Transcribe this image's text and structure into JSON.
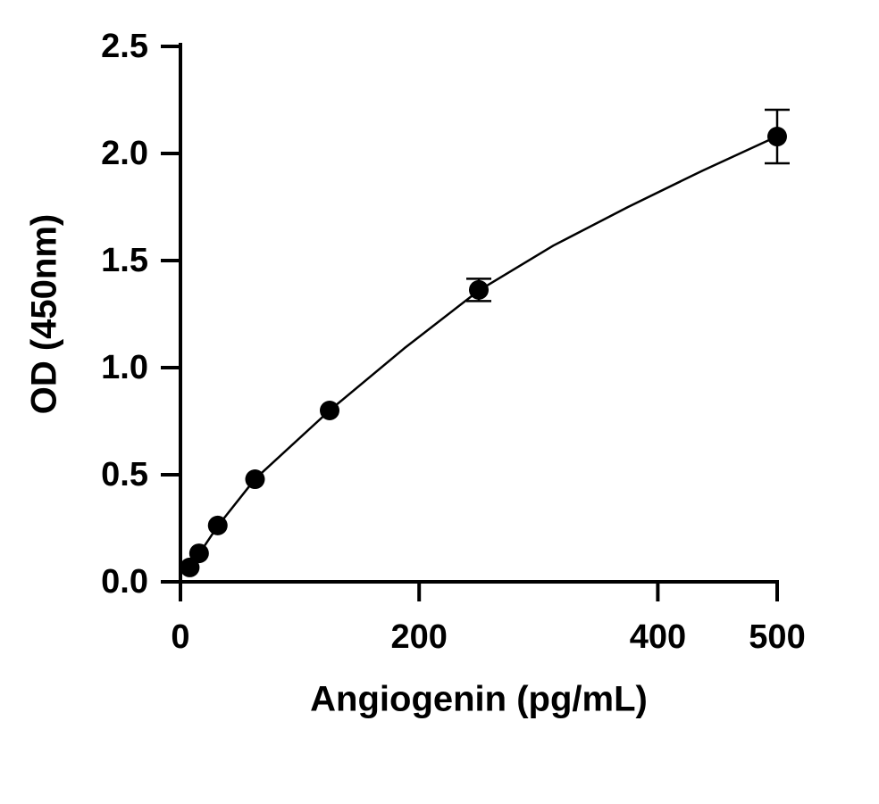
{
  "chart_data": {
    "type": "scatter",
    "x_label": "Angiogenin (pg/mL)",
    "y_label": "OD (450nm)",
    "x": [
      7.8,
      15.6,
      31.25,
      62.5,
      125,
      250,
      500
    ],
    "values": [
      0.067,
      0.133,
      0.263,
      0.479,
      0.8,
      1.363,
      2.079
    ],
    "errors": [
      null,
      null,
      null,
      null,
      null,
      0.052,
      0.125
    ],
    "fit": {
      "x": [
        7.8,
        15.6,
        31.25,
        62.5,
        125,
        187.5,
        250,
        312.5,
        375,
        437.5,
        500
      ],
      "values": [
        0.065,
        0.13,
        0.26,
        0.48,
        0.8,
        1.09,
        1.36,
        1.57,
        1.75,
        1.92,
        2.08
      ]
    },
    "color": "#000000",
    "xlim": [
      0,
      500
    ],
    "xticks": [
      0,
      200,
      400,
      500
    ],
    "ylim": [
      0,
      2.5
    ],
    "yticks": [
      {
        "value": 0,
        "label": "0.0"
      },
      0.5,
      {
        "value": 1,
        "label": "1.0"
      },
      1.5,
      {
        "value": 2,
        "label": "2.0"
      },
      2.5
    ]
  }
}
